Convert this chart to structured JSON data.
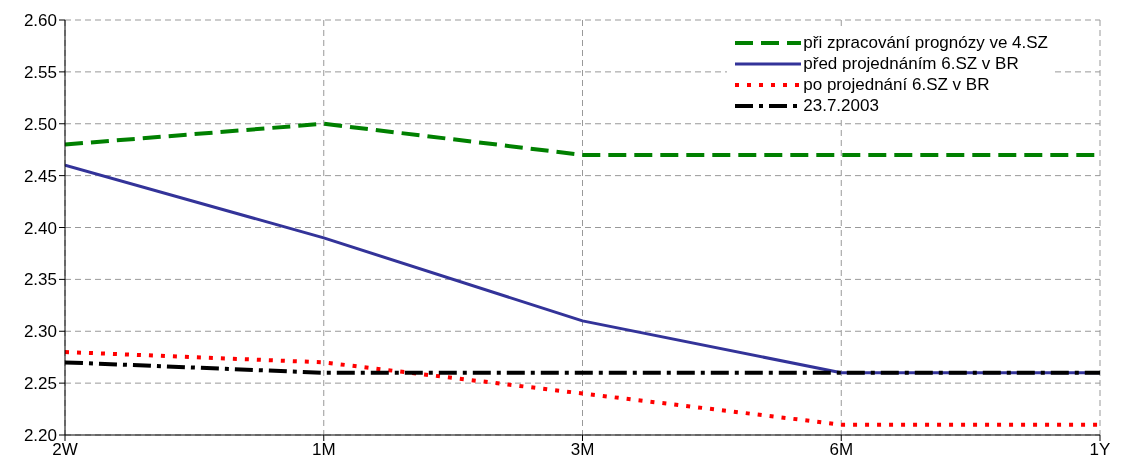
{
  "chart_data": {
    "type": "line",
    "categories": [
      "2W",
      "1M",
      "3M",
      "6M",
      "1Y"
    ],
    "series": [
      {
        "name": "při zpracování prognózy ve 4.SZ",
        "color": "#008000",
        "line_style": "dashed",
        "values": [
          2.48,
          2.5,
          2.47,
          2.47,
          2.47
        ]
      },
      {
        "name": "před projednáním 6.SZ v BR",
        "color": "#333399",
        "line_style": "solid",
        "values": [
          2.46,
          2.39,
          2.31,
          2.26,
          2.26
        ]
      },
      {
        "name": "po projednání 6.SZ v BR",
        "color": "#ff0000",
        "line_style": "dotted",
        "values": [
          2.28,
          2.27,
          2.24,
          2.21,
          2.21
        ]
      },
      {
        "name": "23.7.2003",
        "color": "#000000",
        "line_style": "dashdot",
        "values": [
          2.27,
          2.26,
          2.26,
          2.26,
          2.26
        ]
      }
    ],
    "ylim": [
      2.2,
      2.6
    ],
    "yticks": [
      {
        "value": 2.2,
        "label": "2.20"
      },
      {
        "value": 2.25,
        "label": "2.25"
      },
      {
        "value": 2.3,
        "label": "2.30"
      },
      {
        "value": 2.35,
        "label": "2.35"
      },
      {
        "value": 2.4,
        "label": "2.40"
      },
      {
        "value": 2.45,
        "label": "2.45"
      },
      {
        "value": 2.5,
        "label": "2.50"
      },
      {
        "value": 2.55,
        "label": "2.55"
      },
      {
        "value": 2.6,
        "label": "2.60"
      }
    ],
    "grid": true,
    "legend": "top right",
    "marker": "none"
  }
}
